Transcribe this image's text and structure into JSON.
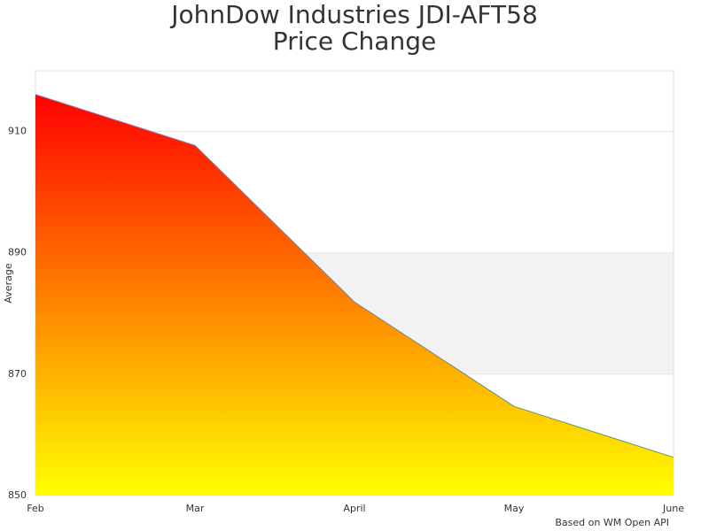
{
  "chart_data": {
    "type": "area",
    "title_lines": [
      "JohnDow Industries JDI-AFT58",
      "Price Change"
    ],
    "y_label": "Average",
    "credit": "Based on WM Open API",
    "categories": [
      "Feb",
      "Mar",
      "April",
      "May",
      "June"
    ],
    "series": [
      {
        "name": "Price",
        "color": "#4a90c8",
        "gradient": [
          "#ff0000",
          "#ffff00"
        ],
        "values": [
          916.1,
          907.7,
          881.9,
          864.7,
          856.3
        ]
      }
    ],
    "ylim": [
      850,
      920
    ],
    "yticks": [
      850,
      870,
      890,
      910
    ],
    "grid": true,
    "plot_bands": [
      {
        "from": 870,
        "to": 890,
        "color": "#f2f2f2"
      }
    ]
  }
}
